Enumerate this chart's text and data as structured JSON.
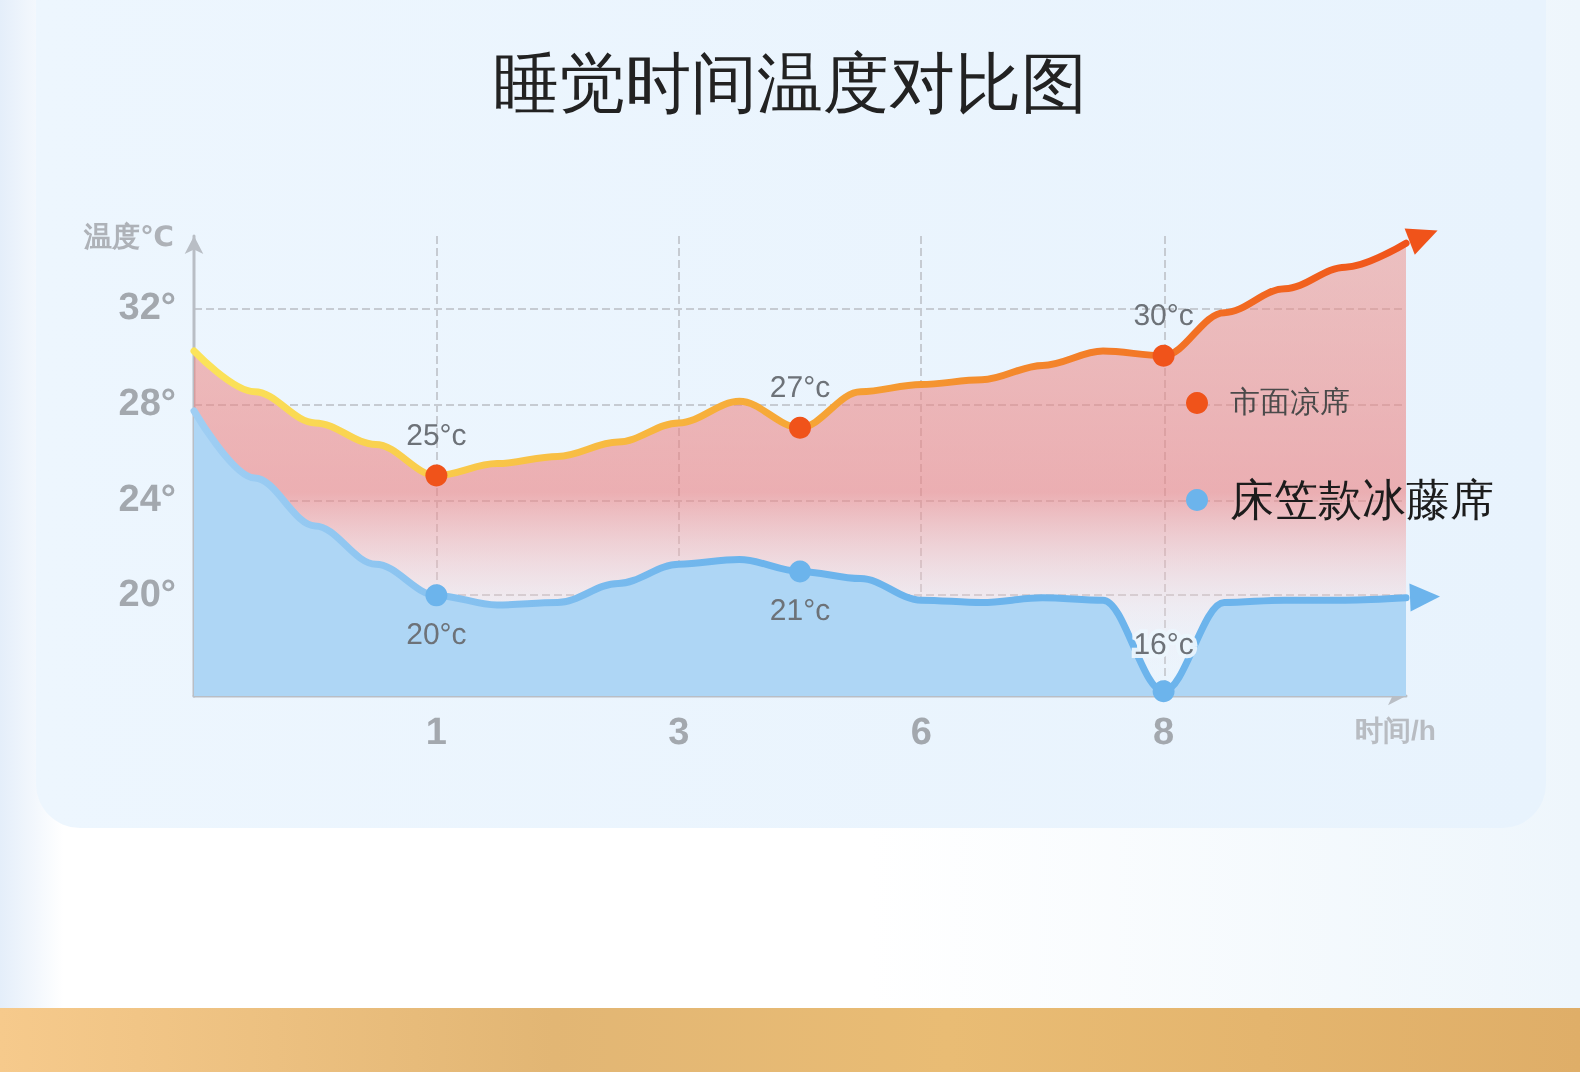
{
  "chart_data": {
    "type": "area",
    "title": "睡觉时间温度对比图",
    "xlabel": "时间/h",
    "ylabel": "温度℃",
    "categories": [
      null,
      null,
      null,
      null,
      "1",
      null,
      null,
      null,
      "3",
      null,
      null,
      null,
      "6",
      null,
      null,
      null,
      "8",
      null,
      null,
      null,
      null
    ],
    "series": [
      {
        "name": "市面凉席",
        "color": "#f0531a",
        "values": [
          30.2,
          28.5,
          27.2,
          26.3,
          25,
          25.5,
          25.8,
          26.4,
          27.2,
          28.1,
          27,
          28.5,
          28.8,
          29.0,
          29.6,
          30.2,
          30,
          31.8,
          32.8,
          33.7,
          34.7
        ],
        "value_labels": [
          null,
          null,
          null,
          null,
          "25°c",
          null,
          null,
          null,
          null,
          null,
          "27°c",
          null,
          null,
          null,
          null,
          null,
          "30°c",
          null,
          null,
          null,
          null
        ]
      },
      {
        "name": "床笠款冰藤席",
        "color": "#6cb4ec",
        "values": [
          27.7,
          24.9,
          22.9,
          21.3,
          20,
          19.6,
          19.7,
          20.5,
          21.3,
          21.5,
          21,
          20.7,
          19.8,
          19.7,
          19.9,
          19.8,
          16,
          19.7,
          19.8,
          19.8,
          19.9
        ],
        "value_labels": [
          null,
          null,
          null,
          null,
          "20°c",
          null,
          null,
          null,
          null,
          null,
          "21°c",
          null,
          null,
          null,
          null,
          null,
          "16°c",
          null,
          null,
          null,
          null
        ]
      }
    ],
    "ylim": [
      15.8,
      35
    ],
    "yticks": [
      {
        "value": 20,
        "label": "20°"
      },
      {
        "value": 24,
        "label": "24°"
      },
      {
        "value": 28,
        "label": "28°"
      },
      {
        "value": 32,
        "label": "32°"
      }
    ],
    "grid": true,
    "legend": "right"
  }
}
